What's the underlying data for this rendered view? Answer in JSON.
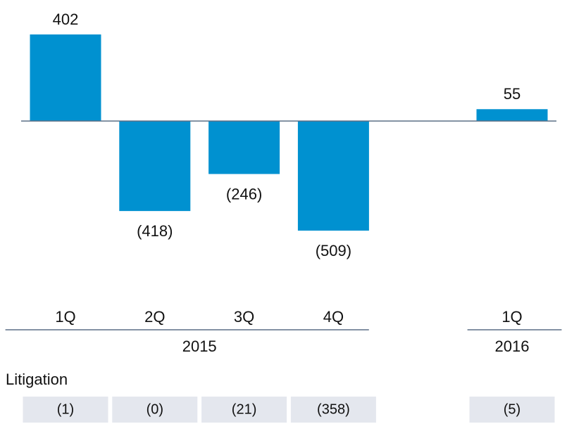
{
  "chart_data": {
    "type": "bar",
    "categories": [
      "1Q",
      "2Q",
      "3Q",
      "4Q",
      null,
      "1Q"
    ],
    "groups": [
      "2015",
      "2015",
      "2015",
      "2015",
      null,
      "2016"
    ],
    "values": [
      402,
      -418,
      -246,
      -509,
      null,
      55
    ],
    "value_labels": [
      "402",
      "(418)",
      "(246)",
      "(509)",
      null,
      "55"
    ],
    "color": "#0091d0",
    "table": {
      "label": "Litigation",
      "values": [
        -1,
        0,
        -21,
        -358,
        null,
        -5
      ],
      "value_labels": [
        "(1)",
        "(0)",
        "(21)",
        "(358)",
        null,
        "(5)"
      ]
    }
  }
}
